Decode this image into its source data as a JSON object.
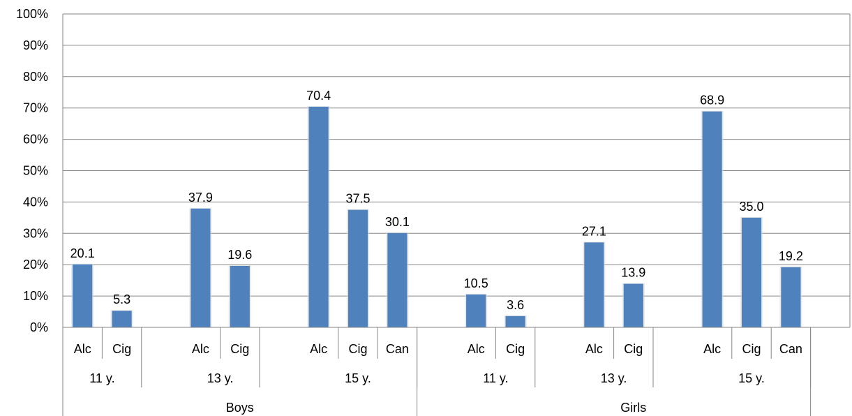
{
  "chart_data": {
    "type": "bar",
    "y_ticks": [
      "0%",
      "10%",
      "20%",
      "30%",
      "40%",
      "50%",
      "60%",
      "70%",
      "80%",
      "90%",
      "100%"
    ],
    "ylim": [
      0,
      100
    ],
    "grid": true,
    "bar_color": "#4F81BD",
    "groups": [
      {
        "name": "Boys",
        "ages": [
          {
            "name": "11 y.",
            "bars": [
              {
                "label": "Alc",
                "value": 20.1,
                "display": "20.1"
              },
              {
                "label": "Cig",
                "value": 5.3,
                "display": "5.3"
              }
            ]
          },
          {
            "name": "13 y.",
            "bars": [
              {
                "label": "Alc",
                "value": 37.9,
                "display": "37.9"
              },
              {
                "label": "Cig",
                "value": 19.6,
                "display": "19.6"
              }
            ]
          },
          {
            "name": "15 y.",
            "bars": [
              {
                "label": "Alc",
                "value": 70.4,
                "display": "70.4"
              },
              {
                "label": "Cig",
                "value": 37.5,
                "display": "37.5"
              },
              {
                "label": "Can",
                "value": 30.1,
                "display": "30.1"
              }
            ]
          }
        ]
      },
      {
        "name": "Girls",
        "ages": [
          {
            "name": "11 y.",
            "bars": [
              {
                "label": "Alc",
                "value": 10.5,
                "display": "10.5"
              },
              {
                "label": "Cig",
                "value": 3.6,
                "display": "3.6"
              }
            ]
          },
          {
            "name": "13 y.",
            "bars": [
              {
                "label": "Alc",
                "value": 27.1,
                "display": "27.1"
              },
              {
                "label": "Cig",
                "value": 13.9,
                "display": "13.9"
              }
            ]
          },
          {
            "name": "15 y.",
            "bars": [
              {
                "label": "Alc",
                "value": 68.9,
                "display": "68.9"
              },
              {
                "label": "Cig",
                "value": 35.0,
                "display": "35.0"
              },
              {
                "label": "Can",
                "value": 19.2,
                "display": "19.2"
              }
            ]
          }
        ]
      }
    ]
  }
}
